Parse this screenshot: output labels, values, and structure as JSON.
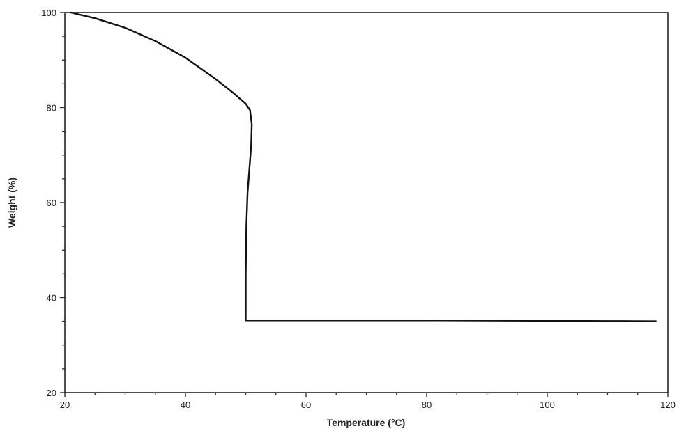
{
  "chart_data": {
    "type": "line",
    "title": "",
    "xlabel": "Temperature (°C)",
    "ylabel": "Weight (%)",
    "xlim": [
      20,
      120
    ],
    "ylim": [
      20,
      100
    ],
    "grid": false,
    "legend": "none",
    "x_ticks": [
      20,
      40,
      60,
      80,
      100,
      120
    ],
    "y_ticks": [
      20,
      40,
      60,
      80,
      100
    ],
    "x_tick_labels": [
      "20",
      "40",
      "60",
      "80",
      "100",
      "120"
    ],
    "y_tick_labels": [
      "20",
      "40",
      "60",
      "80",
      "100"
    ],
    "line_color": "#111111",
    "series": [
      {
        "x": [
          21,
          25,
          30,
          35,
          40,
          45,
          48,
          50,
          50.7,
          51.0,
          50.9,
          50.6,
          50.3,
          50.1,
          50.0,
          50.0,
          55,
          60,
          70,
          80,
          90,
          100,
          110,
          118
        ],
        "y": [
          100,
          98.8,
          96.8,
          94.0,
          90.5,
          86.0,
          83.0,
          80.8,
          79.5,
          76.5,
          72.0,
          67.0,
          62.0,
          55.0,
          45.0,
          35.2,
          35.2,
          35.2,
          35.2,
          35.2,
          35.15,
          35.1,
          35.05,
          35.0
        ]
      }
    ]
  }
}
